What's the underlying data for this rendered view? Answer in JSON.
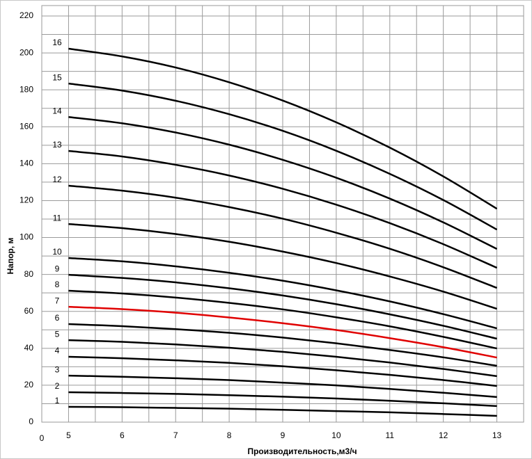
{
  "chart_data": {
    "type": "line",
    "x_label": "Производительность,м3/ч",
    "y_label": "Напор, м",
    "origin_label": "0",
    "x": [
      5,
      6,
      7,
      8,
      9,
      10,
      11,
      12,
      13
    ],
    "xlim": [
      4.5,
      13.5
    ],
    "xticks": [
      5,
      6,
      7,
      8,
      9,
      10,
      11,
      12,
      13
    ],
    "x_minor_ticks": [
      5.5,
      6.5,
      7.5,
      8.5,
      9.5,
      10.5,
      11.5,
      12.5
    ],
    "ylim": [
      0,
      220
    ],
    "yticks": [
      0,
      20,
      40,
      60,
      80,
      100,
      120,
      140,
      160,
      180,
      200,
      220
    ],
    "y_minor_ticks": [
      10,
      30,
      50,
      70,
      90,
      110,
      130,
      150,
      170,
      190,
      210
    ],
    "grid": true,
    "series": [
      {
        "name": "1",
        "color": "#000000",
        "values": [
          8.3,
          8.1,
          7.7,
          7.3,
          6.7,
          6.0,
          5.3,
          4.4,
          3.4
        ]
      },
      {
        "name": "2",
        "color": "#000000",
        "values": [
          16.2,
          15.8,
          15.3,
          14.6,
          13.8,
          12.8,
          11.6,
          10.2,
          8.7
        ]
      },
      {
        "name": "3",
        "color": "#000000",
        "values": [
          25.2,
          24.6,
          23.8,
          22.8,
          21.4,
          19.9,
          18.0,
          15.9,
          13.6
        ]
      },
      {
        "name": "4",
        "color": "#000000",
        "values": [
          35.4,
          34.6,
          33.5,
          32.1,
          30.3,
          28.1,
          25.6,
          22.8,
          19.6
        ]
      },
      {
        "name": "5",
        "color": "#000000",
        "values": [
          44.4,
          43.5,
          42.1,
          40.3,
          38.1,
          35.4,
          32.3,
          28.8,
          24.9
        ]
      },
      {
        "name": "6",
        "color": "#000000",
        "values": [
          53.1,
          52.0,
          50.4,
          48.4,
          45.8,
          42.7,
          39.1,
          35.1,
          30.5
        ]
      },
      {
        "name": "7",
        "color": "#e00000",
        "values": [
          62.5,
          61.2,
          59.3,
          56.7,
          53.6,
          49.9,
          45.5,
          40.6,
          35.0
        ]
      },
      {
        "name": "8",
        "color": "#000000",
        "values": [
          71.2,
          69.7,
          67.5,
          64.6,
          61.1,
          56.8,
          51.9,
          46.2,
          39.9
        ]
      },
      {
        "name": "9",
        "color": "#000000",
        "values": [
          79.8,
          78.1,
          75.7,
          72.5,
          68.6,
          63.9,
          58.4,
          52.2,
          45.2
        ]
      },
      {
        "name": "10",
        "color": "#000000",
        "values": [
          88.9,
          87.1,
          84.4,
          80.9,
          76.6,
          71.4,
          65.4,
          58.5,
          50.8
        ]
      },
      {
        "name": "11",
        "color": "#000000",
        "values": [
          107.3,
          105.1,
          101.9,
          97.7,
          92.4,
          86.2,
          78.9,
          70.7,
          61.4
        ]
      },
      {
        "name": "12",
        "color": "#000000",
        "values": [
          128.1,
          125.4,
          121.6,
          116.5,
          110.2,
          102.6,
          93.9,
          83.9,
          72.7
        ]
      },
      {
        "name": "13",
        "color": "#000000",
        "values": [
          146.9,
          143.9,
          139.4,
          133.6,
          126.4,
          117.8,
          107.8,
          96.4,
          83.6
        ]
      },
      {
        "name": "14",
        "color": "#000000",
        "values": [
          165.3,
          161.9,
          156.9,
          150.3,
          142.1,
          132.4,
          121.1,
          108.2,
          93.8
        ]
      },
      {
        "name": "15",
        "color": "#000000",
        "values": [
          183.4,
          179.6,
          174.1,
          166.8,
          157.8,
          147.0,
          134.5,
          120.3,
          104.3
        ]
      },
      {
        "name": "16",
        "color": "#000000",
        "values": [
          202.3,
          198.1,
          192.1,
          184.1,
          174.2,
          162.4,
          148.7,
          133.1,
          115.6
        ]
      }
    ]
  }
}
